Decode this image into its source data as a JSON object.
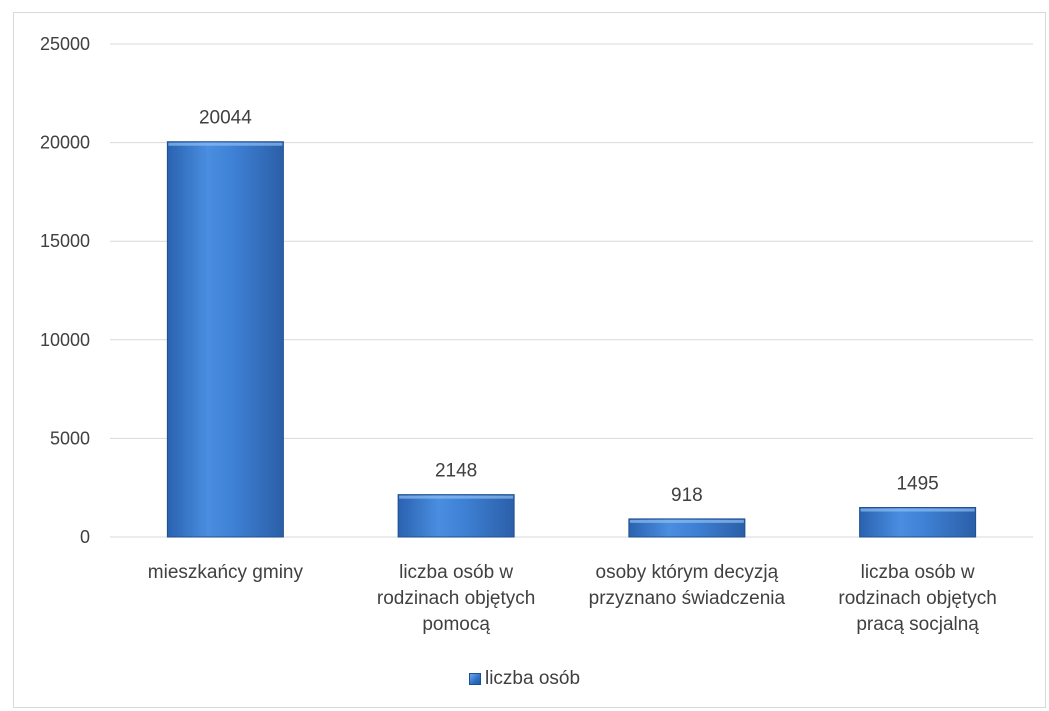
{
  "chart_data": {
    "type": "bar",
    "categories": [
      [
        "mieszkańcy gminy"
      ],
      [
        "liczba osób w",
        "rodzinach objętych",
        "pomocą"
      ],
      [
        "osoby którym decyzją",
        "przyznano świadczenia"
      ],
      [
        "liczba osób w",
        "rodzinach objętych",
        "pracą socjalną"
      ]
    ],
    "series": [
      {
        "name": "liczba osób",
        "values": [
          20044,
          2148,
          918,
          1495
        ]
      }
    ],
    "yticks": [
      "0",
      "5000",
      "10000",
      "15000",
      "20000",
      "25000"
    ],
    "ylim": [
      0,
      25000
    ],
    "grid": true,
    "legend_position": "bottom",
    "bar_color": "#2e6fc4"
  }
}
